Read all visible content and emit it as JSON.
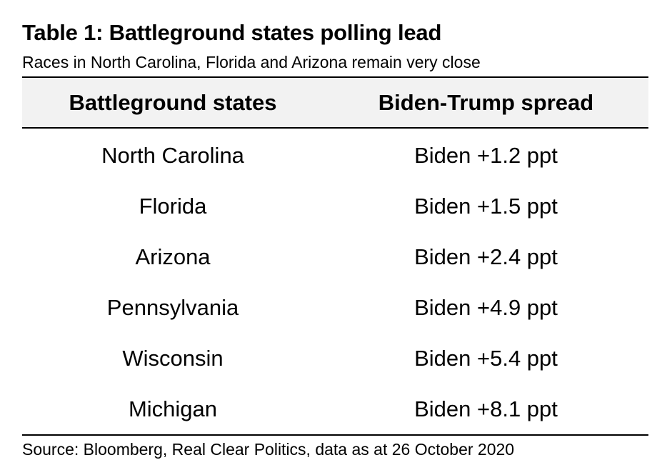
{
  "title": "Table 1: Battleground states polling lead",
  "subtitle": "Races in North Carolina, Florida and Arizona remain very close",
  "table": {
    "headers": [
      "Battleground states",
      "Biden-Trump spread"
    ],
    "rows": [
      [
        "North Carolina",
        "Biden +1.2 ppt"
      ],
      [
        "Florida",
        "Biden +1.5 ppt"
      ],
      [
        "Arizona",
        "Biden +2.4 ppt"
      ],
      [
        "Pennsylvania",
        "Biden +4.9 ppt"
      ],
      [
        "Wisconsin",
        "Biden +5.4 ppt"
      ],
      [
        "Michigan",
        "Biden +8.1 ppt"
      ]
    ]
  },
  "source": "Source: Bloomberg, Real Clear Politics, data as at 26 October 2020",
  "colors": {
    "header_background": "#f2f2f2",
    "rule": "#000000",
    "text": "#000000"
  }
}
